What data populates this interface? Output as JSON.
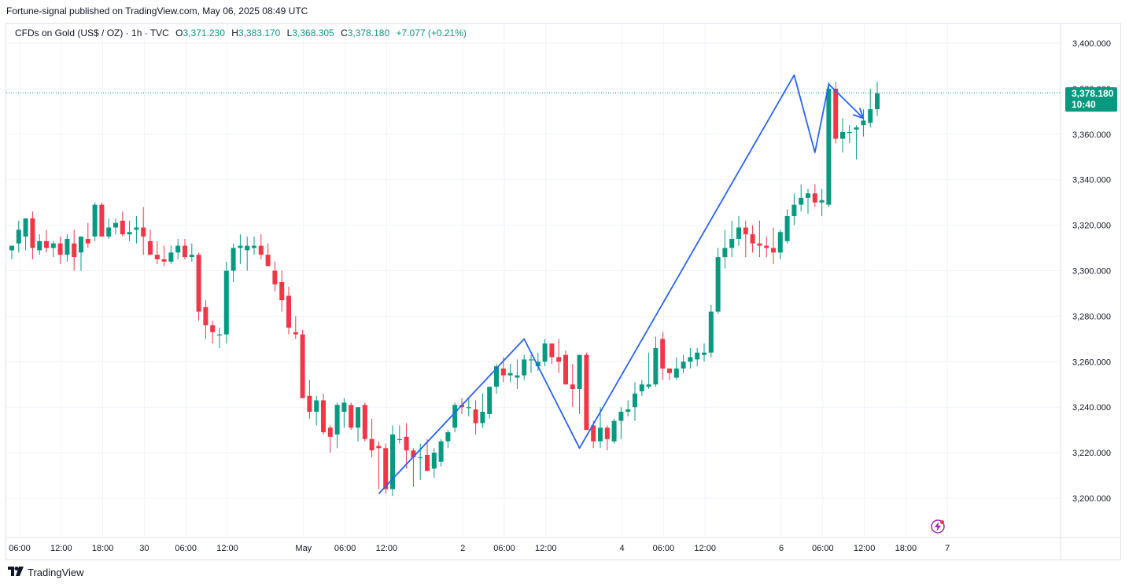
{
  "header": {
    "publisher": "Fortune-signal published on TradingView.com, May 06, 2025 08:49 UTC"
  },
  "legend": {
    "symbol": "CFDs on Gold (US$ / OZ) · 1h · TVC",
    "open_label": "O",
    "open": "3,371.230",
    "high_label": "H",
    "high": "3,383.170",
    "low_label": "L",
    "low": "3,368.305",
    "close_label": "C",
    "close": "3,378.180",
    "change": "+7.077 (+0.21%)"
  },
  "price_tag": {
    "price": "3,378.180",
    "countdown": "10:40"
  },
  "footer": {
    "brand": "TradingView",
    "logo": "TV-logo"
  },
  "colors": {
    "up": "#089981",
    "down": "#f23645",
    "drawing": "#2962ff",
    "grid": "#f0f3fa"
  },
  "chart_data": {
    "type": "candlestick",
    "title": "CFDs on Gold (US$ / OZ) · 1h · TVC",
    "ylim": [
      3184,
      3408
    ],
    "y_ticks": [
      "3,200.000",
      "3,220.000",
      "3,240.000",
      "3,260.000",
      "3,280.000",
      "3,300.000",
      "3,320.000",
      "3,340.000",
      "3,360.000",
      "3,380.000",
      "3,400.000"
    ],
    "y_tick_values": [
      3200,
      3220,
      3240,
      3260,
      3280,
      3300,
      3320,
      3340,
      3360,
      3380,
      3400
    ],
    "x_ticks": [
      "06:00",
      "12:00",
      "18:00",
      "30",
      "06:00",
      "12:00",
      "May",
      "06:00",
      "12:00",
      "2",
      "06:00",
      "12:00",
      "4",
      "06:00",
      "12:00",
      "6",
      "06:00",
      "12:00",
      "18:00",
      "7"
    ],
    "x_tick_bars": [
      0,
      6,
      12,
      18,
      24,
      30,
      41,
      47,
      53,
      64,
      70,
      76,
      87,
      93,
      99,
      110,
      116,
      122,
      128,
      134
    ],
    "last_price": 3378.18,
    "candles": [
      [
        3309,
        3311,
        3305,
        3311
      ],
      [
        3312,
        3322,
        3308,
        3318
      ],
      [
        3315,
        3323,
        3309,
        3323
      ],
      [
        3323,
        3326,
        3305,
        3310
      ],
      [
        3309,
        3316,
        3307,
        3313
      ],
      [
        3313,
        3318,
        3308,
        3310
      ],
      [
        3310,
        3313,
        3306,
        3312
      ],
      [
        3312,
        3315,
        3303,
        3307
      ],
      [
        3307,
        3316,
        3304,
        3314
      ],
      [
        3312,
        3318,
        3300,
        3306
      ],
      [
        3308,
        3315,
        3300,
        3315
      ],
      [
        3314,
        3321,
        3310,
        3312
      ],
      [
        3315,
        3330,
        3313,
        3329
      ],
      [
        3329,
        3330,
        3315,
        3315
      ],
      [
        3315,
        3323,
        3314,
        3319
      ],
      [
        3319,
        3323,
        3316,
        3321
      ],
      [
        3322,
        3326,
        3315,
        3316
      ],
      [
        3316,
        3322,
        3313,
        3317
      ],
      [
        3318,
        3324,
        3312,
        3319
      ],
      [
        3319,
        3328,
        3307,
        3315
      ],
      [
        3313,
        3318,
        3307,
        3307
      ],
      [
        3307,
        3313,
        3303,
        3305
      ],
      [
        3305,
        3311,
        3302,
        3304
      ],
      [
        3304,
        3311,
        3303,
        3308
      ],
      [
        3308,
        3314,
        3305,
        3311
      ],
      [
        3311,
        3314,
        3305,
        3306
      ],
      [
        3306,
        3312,
        3304,
        3307
      ],
      [
        3307,
        3308,
        3278,
        3282
      ],
      [
        3284,
        3287,
        3270,
        3276
      ],
      [
        3276,
        3278,
        3268,
        3273
      ],
      [
        3272,
        3275,
        3266,
        3272
      ],
      [
        3272,
        3304,
        3268,
        3300
      ],
      [
        3300,
        3312,
        3295,
        3310
      ],
      [
        3310,
        3316,
        3303,
        3311
      ],
      [
        3309,
        3315,
        3300,
        3311
      ],
      [
        3310,
        3315,
        3307,
        3311
      ],
      [
        3311,
        3316,
        3305,
        3307
      ],
      [
        3307,
        3312,
        3303,
        3302
      ],
      [
        3300,
        3304,
        3291,
        3294
      ],
      [
        3295,
        3300,
        3282,
        3287
      ],
      [
        3289,
        3293,
        3272,
        3275
      ],
      [
        3273,
        3280,
        3270,
        3272
      ],
      [
        3272,
        3274,
        3244,
        3244
      ],
      [
        3245,
        3252,
        3235,
        3238
      ],
      [
        3238,
        3245,
        3232,
        3243
      ],
      [
        3243,
        3246,
        3228,
        3229
      ],
      [
        3231,
        3232,
        3220,
        3227
      ],
      [
        3228,
        3242,
        3222,
        3241
      ],
      [
        3238,
        3244,
        3231,
        3242
      ],
      [
        3241,
        3242,
        3230,
        3231
      ],
      [
        3231,
        3240,
        3225,
        3240
      ],
      [
        3241,
        3242,
        3225,
        3226
      ],
      [
        3226,
        3235,
        3218,
        3221
      ],
      [
        3223,
        3225,
        3204,
        3222
      ],
      [
        3222,
        3224,
        3202,
        3204
      ],
      [
        3204,
        3232,
        3201,
        3228
      ],
      [
        3226,
        3232,
        3224,
        3226
      ],
      [
        3227,
        3233,
        3213,
        3221
      ],
      [
        3221,
        3222,
        3205,
        3218
      ],
      [
        3218,
        3224,
        3208,
        3218
      ],
      [
        3219,
        3226,
        3212,
        3212
      ],
      [
        3213,
        3222,
        3209,
        3220
      ],
      [
        3216,
        3226,
        3214,
        3225
      ],
      [
        3225,
        3230,
        3222,
        3229
      ],
      [
        3231,
        3242,
        3229,
        3241
      ],
      [
        3241,
        3244,
        3237,
        3240
      ],
      [
        3240,
        3244,
        3236,
        3240
      ],
      [
        3239,
        3243,
        3228,
        3233
      ],
      [
        3233,
        3246,
        3231,
        3238
      ],
      [
        3237,
        3248,
        3235,
        3249
      ],
      [
        3249,
        3259,
        3246,
        3258
      ],
      [
        3257,
        3262,
        3251,
        3254
      ],
      [
        3254,
        3259,
        3251,
        3255
      ],
      [
        3253,
        3261,
        3248,
        3254
      ],
      [
        3254,
        3263,
        3252,
        3261
      ],
      [
        3261,
        3263,
        3255,
        3261
      ],
      [
        3258,
        3264,
        3256,
        3260
      ],
      [
        3260,
        3270,
        3258,
        3268
      ],
      [
        3268,
        3268,
        3259,
        3262
      ],
      [
        3262,
        3270,
        3255,
        3260
      ],
      [
        3263,
        3265,
        3250,
        3250
      ],
      [
        3250,
        3259,
        3240,
        3248
      ],
      [
        3248,
        3263,
        3237,
        3263
      ],
      [
        3263,
        3264,
        3230,
        3230
      ],
      [
        3232,
        3234,
        3222,
        3225
      ],
      [
        3225,
        3240,
        3222,
        3231
      ],
      [
        3231,
        3232,
        3221,
        3226
      ],
      [
        3225,
        3235,
        3224,
        3234
      ],
      [
        3234,
        3240,
        3226,
        3238
      ],
      [
        3238,
        3243,
        3236,
        3239
      ],
      [
        3240,
        3251,
        3234,
        3246
      ],
      [
        3247,
        3252,
        3245,
        3250
      ],
      [
        3249,
        3264,
        3248,
        3250
      ],
      [
        3250,
        3271,
        3249,
        3266
      ],
      [
        3270,
        3273,
        3252,
        3257
      ],
      [
        3257,
        3257,
        3252,
        3255
      ],
      [
        3253,
        3262,
        3252,
        3257
      ],
      [
        3257,
        3263,
        3255,
        3260
      ],
      [
        3260,
        3266,
        3257,
        3262
      ],
      [
        3261,
        3266,
        3258,
        3264
      ],
      [
        3263,
        3268,
        3260,
        3264
      ],
      [
        3264,
        3285,
        3262,
        3282
      ],
      [
        3282,
        3310,
        3281,
        3306
      ],
      [
        3306,
        3318,
        3301,
        3310
      ],
      [
        3310,
        3322,
        3306,
        3314
      ],
      [
        3314,
        3324,
        3311,
        3319
      ],
      [
        3319,
        3322,
        3306,
        3316
      ],
      [
        3316,
        3320,
        3308,
        3312
      ],
      [
        3312,
        3322,
        3306,
        3311
      ],
      [
        3311,
        3315,
        3306,
        3310
      ],
      [
        3310,
        3319,
        3303,
        3308
      ],
      [
        3308,
        3318,
        3305,
        3317
      ],
      [
        3313,
        3327,
        3312,
        3324
      ],
      [
        3324,
        3334,
        3320,
        3329
      ],
      [
        3329,
        3338,
        3326,
        3332
      ],
      [
        3332,
        3336,
        3325,
        3334
      ],
      [
        3334,
        3338,
        3328,
        3330
      ],
      [
        3330,
        3336,
        3324,
        3331
      ],
      [
        3329,
        3383,
        3328,
        3380
      ],
      [
        3380,
        3383,
        3356,
        3358
      ],
      [
        3358,
        3367,
        3352,
        3361
      ],
      [
        3361,
        3364,
        3356,
        3361
      ],
      [
        3362,
        3364,
        3349,
        3363
      ],
      [
        3364,
        3371,
        3359,
        3366
      ],
      [
        3365,
        3380,
        3363,
        3371
      ],
      [
        3371,
        3383,
        3368,
        3378
      ]
    ],
    "drawings": [
      {
        "type": "zigzag",
        "points": [
          [
            53,
            3202
          ],
          [
            74,
            3270
          ],
          [
            82,
            3222
          ],
          [
            113,
            3386
          ],
          [
            116,
            3352
          ],
          [
            118,
            3382
          ],
          [
            123,
            3367
          ]
        ]
      }
    ]
  }
}
